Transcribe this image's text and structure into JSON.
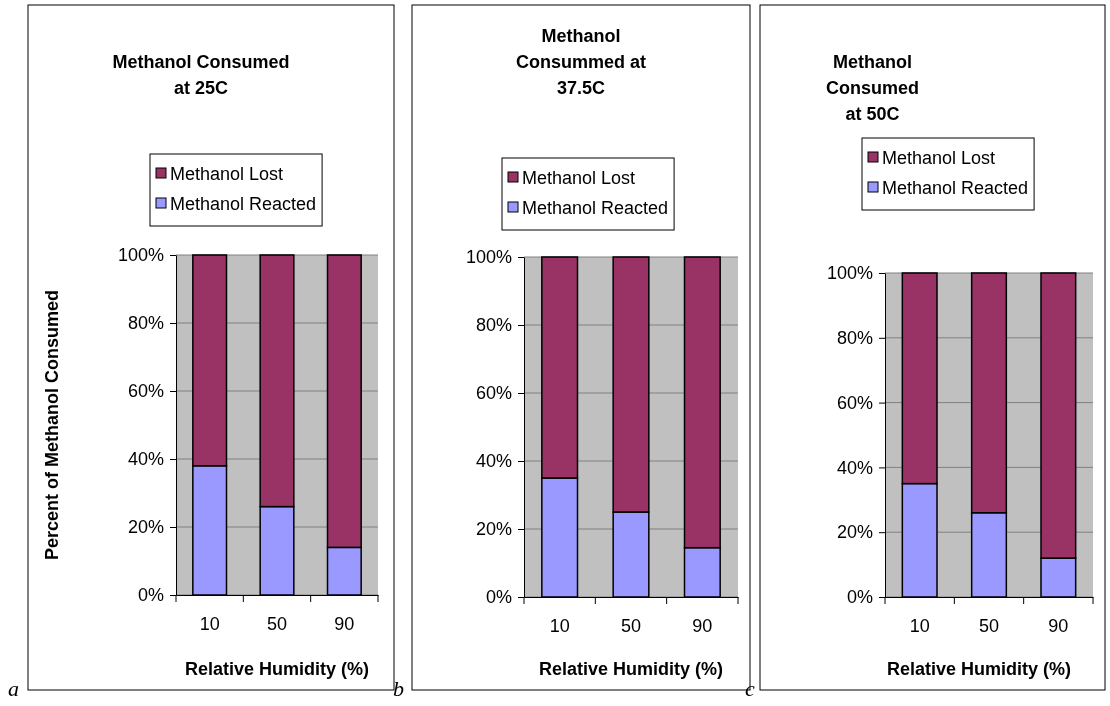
{
  "chart_data": [
    {
      "type": "bar",
      "title": "Methanol Consumed\nat 25C",
      "xlabel": "Relative Humidity (%)",
      "ylabel": "Percent of Methanol Consumed",
      "categories": [
        "10",
        "50",
        "90"
      ],
      "stacked": true,
      "series": [
        {
          "name": "Methanol Reacted",
          "color": "#9999ff",
          "values": [
            38,
            26,
            14
          ]
        },
        {
          "name": "Methanol Lost",
          "color": "#993366",
          "values": [
            62,
            74,
            86
          ]
        }
      ],
      "ylim": [
        0,
        100
      ],
      "yticks": [
        {
          "value": 0,
          "label": "0%"
        },
        {
          "value": 20,
          "label": "20%"
        },
        {
          "value": 40,
          "label": "40%"
        },
        {
          "value": 60,
          "label": "60%"
        },
        {
          "value": 80,
          "label": "80%"
        },
        {
          "value": 100,
          "label": "100%"
        }
      ],
      "grid": "y",
      "legend": "top",
      "annotations": [
        "a"
      ]
    },
    {
      "type": "bar",
      "title": "Methanol\nConsummed at\n37.5C",
      "xlabel": "Relative Humidity (%)",
      "categories": [
        "10",
        "50",
        "90"
      ],
      "stacked": true,
      "series": [
        {
          "name": "Methanol Reacted",
          "color": "#9999ff",
          "values": [
            35,
            25,
            14.5
          ]
        },
        {
          "name": "Methanol Lost",
          "color": "#993366",
          "values": [
            65,
            75,
            85.5
          ]
        }
      ],
      "ylim": [
        0,
        100
      ],
      "yticks": [
        {
          "value": 0,
          "label": "0%"
        },
        {
          "value": 20,
          "label": "20%"
        },
        {
          "value": 40,
          "label": "40%"
        },
        {
          "value": 60,
          "label": "60%"
        },
        {
          "value": 80,
          "label": "80%"
        },
        {
          "value": 100,
          "label": "100%"
        }
      ],
      "grid": "y",
      "legend": "top",
      "annotations": [
        "b"
      ]
    },
    {
      "type": "bar",
      "title": "Methanol\nConsumed\nat 50C",
      "xlabel": "Relative Humidity (%)",
      "categories": [
        "10",
        "50",
        "90"
      ],
      "stacked": true,
      "series": [
        {
          "name": "Methanol Reacted",
          "color": "#9999ff",
          "values": [
            35,
            26,
            12
          ]
        },
        {
          "name": "Methanol Lost",
          "color": "#993366",
          "values": [
            65,
            74,
            88
          ]
        }
      ],
      "ylim": [
        0,
        100
      ],
      "yticks": [
        {
          "value": 0,
          "label": "0%"
        },
        {
          "value": 20,
          "label": "20%"
        },
        {
          "value": 40,
          "label": "40%"
        },
        {
          "value": 60,
          "label": "60%"
        },
        {
          "value": 80,
          "label": "80%"
        },
        {
          "value": 100,
          "label": "100%"
        }
      ],
      "grid": "y",
      "legend": "top",
      "annotations": [
        "c"
      ]
    }
  ]
}
